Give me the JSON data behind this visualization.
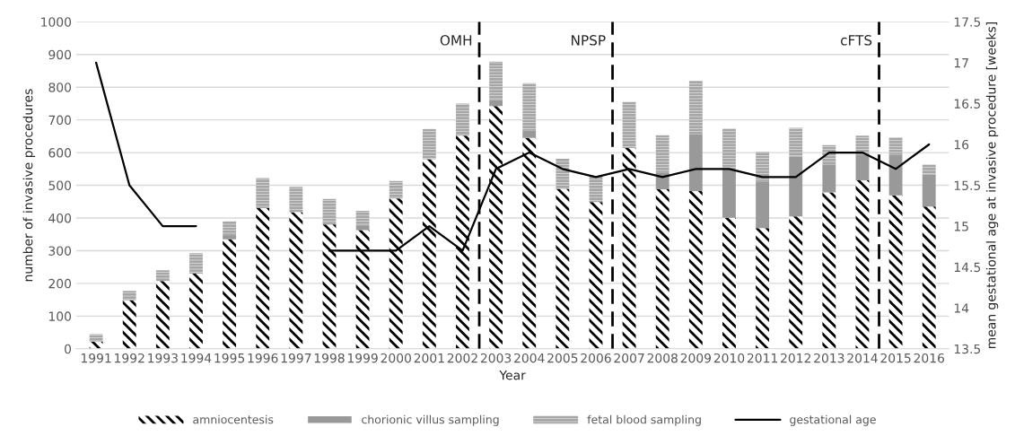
{
  "chart_data": {
    "type": "bar",
    "stacked": true,
    "xlabel": "Year",
    "ylabel": "number of invasive procedures",
    "y2label": "mean gestational age at invasive procedure [weeks]",
    "categories": [
      "1991",
      "1992",
      "1993",
      "1994",
      "1995",
      "1996",
      "1997",
      "1998",
      "1999",
      "2000",
      "2001",
      "2002",
      "2003",
      "2004",
      "2005",
      "2006",
      "2007",
      "2008",
      "2009",
      "2010",
      "2011",
      "2012",
      "2013",
      "2014",
      "2015",
      "2016"
    ],
    "series": [
      {
        "name": "amniocentesis",
        "color": "#000000",
        "values": [
          22,
          148,
          207,
          230,
          335,
          430,
          418,
          380,
          363,
          460,
          580,
          652,
          742,
          645,
          489,
          449,
          614,
          488,
          482,
          401,
          369,
          405,
          478,
          515,
          469,
          435
        ]
      },
      {
        "name": "chorionic villus sampling",
        "color": "#999999",
        "values": [
          0,
          0,
          0,
          0,
          10,
          0,
          0,
          5,
          12,
          0,
          0,
          0,
          18,
          22,
          0,
          0,
          0,
          51,
          173,
          149,
          143,
          182,
          86,
          78,
          124,
          98
        ]
      },
      {
        "name": "fetal blood sampling",
        "color": "#a6a6a6",
        "values": [
          23,
          29,
          33,
          62,
          45,
          92,
          77,
          73,
          47,
          53,
          92,
          98,
          118,
          145,
          92,
          77,
          141,
          114,
          165,
          124,
          90,
          89,
          59,
          59,
          54,
          31
        ]
      },
      {
        "name": "gestational age",
        "type": "line",
        "axis": "y2",
        "color": "#000000",
        "values": [
          17,
          15.5,
          15,
          15,
          null,
          null,
          null,
          14.7,
          14.7,
          14.7,
          15,
          14.7,
          15.7,
          15.9,
          15.7,
          15.6,
          15.7,
          15.6,
          15.7,
          15.7,
          15.6,
          15.6,
          15.9,
          15.9,
          15.7,
          16
        ]
      }
    ],
    "ylim": [
      0,
      1000
    ],
    "yticks": [
      0,
      100,
      200,
      300,
      400,
      500,
      600,
      700,
      800,
      900,
      1000
    ],
    "y2lim": [
      13.5,
      17.5
    ],
    "y2ticks": [
      13.5,
      14,
      14.5,
      15,
      15.5,
      16,
      16.5,
      17,
      17.5
    ],
    "annotations": [
      "OMH",
      "NPSP",
      "cFTS"
    ],
    "grid": "y",
    "legend": "bottom"
  }
}
